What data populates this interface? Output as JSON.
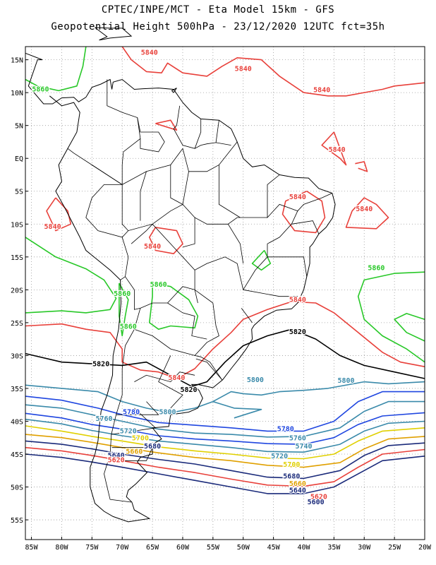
{
  "header": {
    "line1": "CPTEC/INPE/MCT -  Eta Model 15km - GFS",
    "line2": "Geopotential Height 500hPa - 23/12/2020 12UTC fct=35h"
  },
  "map": {
    "lon_range": [
      -86,
      -20
    ],
    "lat_range": [
      -58,
      17
    ],
    "lat_ticks": [
      "15N",
      "10N",
      "5N",
      "EQ",
      "5S",
      "10S",
      "15S",
      "20S",
      "25S",
      "30S",
      "35S",
      "40S",
      "45S",
      "50S",
      "55S"
    ],
    "lon_ticks": [
      "85W",
      "80W",
      "75W",
      "70W",
      "65W",
      "60W",
      "55W",
      "50W",
      "45W",
      "40W",
      "35W",
      "30W",
      "25W",
      "20W"
    ],
    "grid": "dotted",
    "contour_interval_gpm": 20,
    "contour_labels": [
      {
        "value": "5840",
        "lon": -81.5,
        "lat": -10.3,
        "color": "#e8403a"
      },
      {
        "value": "5840",
        "lon": -65.5,
        "lat": 16.2,
        "color": "#e8403a"
      },
      {
        "value": "5840",
        "lon": -50,
        "lat": 13.7,
        "color": "#e8403a"
      },
      {
        "value": "5840",
        "lon": -37,
        "lat": 10.5,
        "color": "#e8403a"
      },
      {
        "value": "5840",
        "lon": -34.5,
        "lat": 1.4,
        "color": "#e8403a"
      },
      {
        "value": "5840",
        "lon": -30,
        "lat": -7.6,
        "color": "#e8403a"
      },
      {
        "value": "5840",
        "lon": -41,
        "lat": -5.8,
        "color": "#e8403a"
      },
      {
        "value": "5840",
        "lon": -65,
        "lat": -13.3,
        "color": "#e8403a"
      },
      {
        "value": "5840",
        "lon": -41,
        "lat": -21.4,
        "color": "#e8403a"
      },
      {
        "value": "5840",
        "lon": -61,
        "lat": -33.3,
        "color": "#e8403a"
      },
      {
        "value": "5860",
        "lon": -83.5,
        "lat": 10.6,
        "color": "#28c828"
      },
      {
        "value": "5860",
        "lon": -28,
        "lat": -16.6,
        "color": "#28c828"
      },
      {
        "value": "5860",
        "lon": -70,
        "lat": -20.5,
        "color": "#28c828"
      },
      {
        "value": "5860",
        "lon": -64,
        "lat": -19.1,
        "color": "#28c828"
      },
      {
        "value": "5860",
        "lon": -69,
        "lat": -25.5,
        "color": "#28c828"
      },
      {
        "value": "5820",
        "lon": -41,
        "lat": -26.3,
        "color": "#000000"
      },
      {
        "value": "5820",
        "lon": -73.5,
        "lat": -31.2,
        "color": "#000000"
      },
      {
        "value": "5820",
        "lon": -59,
        "lat": -35.1,
        "color": "#000000"
      },
      {
        "value": "5800",
        "lon": -48,
        "lat": -33.6,
        "color": "#3a8aaa"
      },
      {
        "value": "5800",
        "lon": -33,
        "lat": -33.7,
        "color": "#3a8aaa"
      },
      {
        "value": "5800",
        "lon": -62.5,
        "lat": -38.5,
        "color": "#3a8aaa"
      },
      {
        "value": "5780",
        "lon": -68.5,
        "lat": -38.5,
        "color": "#1f46e0"
      },
      {
        "value": "5780",
        "lon": -43,
        "lat": -41.1,
        "color": "#1f46e0"
      },
      {
        "value": "5760",
        "lon": -73,
        "lat": -39.5,
        "color": "#3a8aaa"
      },
      {
        "value": "5760",
        "lon": -41,
        "lat": -42.5,
        "color": "#3a8aaa"
      },
      {
        "value": "5740",
        "lon": -40,
        "lat": -43.7,
        "color": "#3a8aaa"
      },
      {
        "value": "5720",
        "lon": -69,
        "lat": -41.4,
        "color": "#3a8aaa"
      },
      {
        "value": "5720",
        "lon": -44,
        "lat": -45.2,
        "color": "#3a8aaa"
      },
      {
        "value": "5700",
        "lon": -67,
        "lat": -42.5,
        "color": "#e0d000"
      },
      {
        "value": "5700",
        "lon": -42,
        "lat": -46.5,
        "color": "#e0d000"
      },
      {
        "value": "5680",
        "lon": -65,
        "lat": -43.7,
        "color": "#1a2a7a"
      },
      {
        "value": "5680",
        "lon": -42,
        "lat": -48.3,
        "color": "#1a2a7a"
      },
      {
        "value": "5660",
        "lon": -68,
        "lat": -44.5,
        "color": "#e0a000"
      },
      {
        "value": "5660",
        "lon": -41,
        "lat": -49.4,
        "color": "#e0a000"
      },
      {
        "value": "5640",
        "lon": -71,
        "lat": -45.1,
        "color": "#1a2a7a"
      },
      {
        "value": "5640",
        "lon": -41,
        "lat": -50.4,
        "color": "#1a2a7a"
      },
      {
        "value": "5620",
        "lon": -71,
        "lat": -45.8,
        "color": "#e8403a"
      },
      {
        "value": "5620",
        "lon": -37.5,
        "lat": -51.4,
        "color": "#e8403a"
      },
      {
        "value": "5600",
        "lon": -38,
        "lat": -52.2,
        "color": "#1a2a7a"
      }
    ]
  },
  "colors": {
    "c5860": "#28c828",
    "c5840": "#e8403a",
    "c5820": "#000000",
    "c5800": "#3a8aaa",
    "c5780": "#1f46e0",
    "c5700": "#e0d000",
    "c5660": "#e0a000",
    "c5600": "#1a2a7a",
    "coast": "#000000"
  }
}
